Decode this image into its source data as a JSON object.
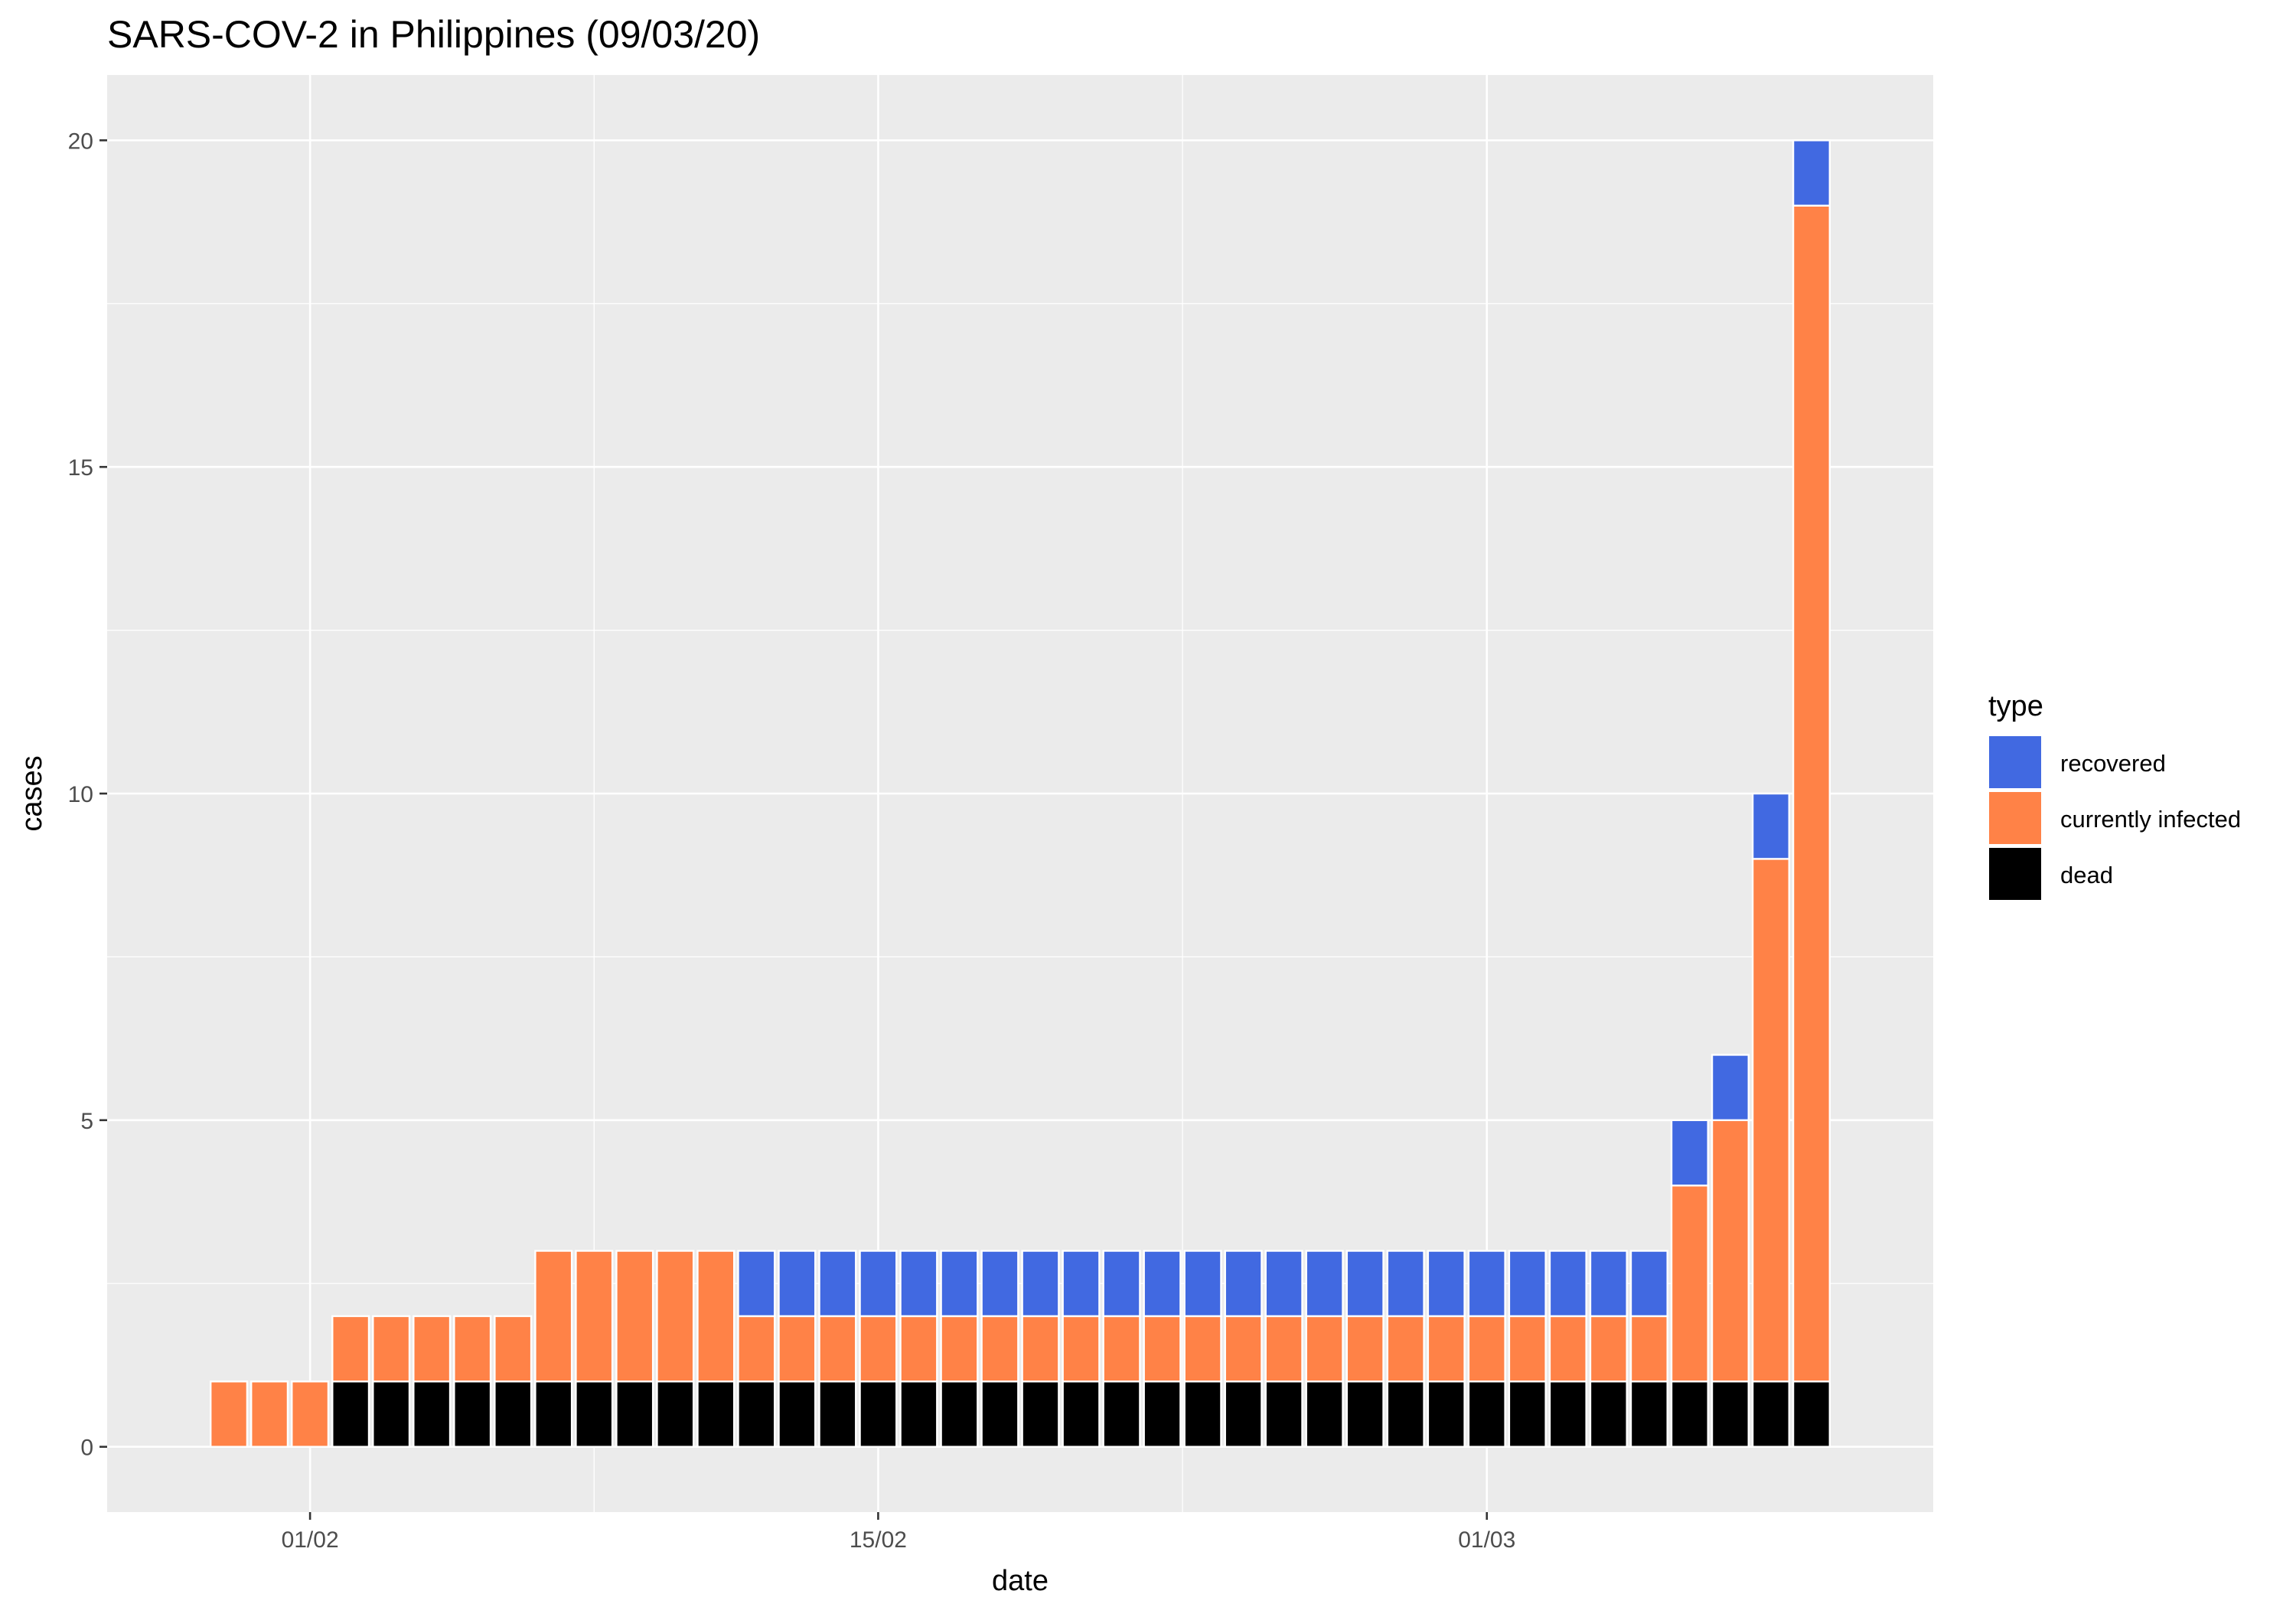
{
  "chart_data": {
    "type": "bar",
    "stacked": true,
    "title": "SARS-COV-2 in Philippines (09/03/20)",
    "xlabel": "date",
    "ylabel": "cases",
    "ylim": [
      -1,
      21
    ],
    "y_ticks": [
      0,
      5,
      10,
      15,
      20
    ],
    "x_ticks": [
      {
        "label": "01/02",
        "date": "2020-02-01"
      },
      {
        "label": "15/02",
        "date": "2020-02-15"
      },
      {
        "label": "01/03",
        "date": "2020-03-01"
      }
    ],
    "x_range": [
      "2020-01-27",
      "2020-03-12"
    ],
    "grid": true,
    "legend": {
      "title": "type",
      "position": "right",
      "entries": [
        {
          "name": "recovered",
          "color": "#4169e1"
        },
        {
          "name": "currently infected",
          "color": "#ff8247"
        },
        {
          "name": "dead",
          "color": "#000000"
        }
      ]
    },
    "dates": [
      "2020-01-30",
      "2020-01-31",
      "2020-02-01",
      "2020-02-02",
      "2020-02-03",
      "2020-02-04",
      "2020-02-05",
      "2020-02-06",
      "2020-02-07",
      "2020-02-08",
      "2020-02-09",
      "2020-02-10",
      "2020-02-11",
      "2020-02-12",
      "2020-02-13",
      "2020-02-14",
      "2020-02-15",
      "2020-02-16",
      "2020-02-17",
      "2020-02-18",
      "2020-02-19",
      "2020-02-20",
      "2020-02-21",
      "2020-02-22",
      "2020-02-23",
      "2020-02-24",
      "2020-02-25",
      "2020-02-26",
      "2020-02-27",
      "2020-02-28",
      "2020-02-29",
      "2020-03-01",
      "2020-03-02",
      "2020-03-03",
      "2020-03-04",
      "2020-03-05",
      "2020-03-06",
      "2020-03-07",
      "2020-03-08",
      "2020-03-09"
    ],
    "series": [
      {
        "name": "dead",
        "color": "#000000",
        "values": [
          0,
          0,
          0,
          1,
          1,
          1,
          1,
          1,
          1,
          1,
          1,
          1,
          1,
          1,
          1,
          1,
          1,
          1,
          1,
          1,
          1,
          1,
          1,
          1,
          1,
          1,
          1,
          1,
          1,
          1,
          1,
          1,
          1,
          1,
          1,
          1,
          1,
          1,
          1,
          1
        ]
      },
      {
        "name": "currently infected",
        "color": "#ff8247",
        "values": [
          1,
          1,
          1,
          1,
          1,
          1,
          1,
          1,
          2,
          2,
          2,
          2,
          2,
          1,
          1,
          1,
          1,
          1,
          1,
          1,
          1,
          1,
          1,
          1,
          1,
          1,
          1,
          1,
          1,
          1,
          1,
          1,
          1,
          1,
          1,
          1,
          3,
          4,
          8,
          18
        ]
      },
      {
        "name": "recovered",
        "color": "#4169e1",
        "values": [
          0,
          0,
          0,
          0,
          0,
          0,
          0,
          0,
          0,
          0,
          0,
          0,
          0,
          1,
          1,
          1,
          1,
          1,
          1,
          1,
          1,
          1,
          1,
          1,
          1,
          1,
          1,
          1,
          1,
          1,
          1,
          1,
          1,
          1,
          1,
          1,
          1,
          1,
          1,
          1
        ]
      }
    ]
  }
}
